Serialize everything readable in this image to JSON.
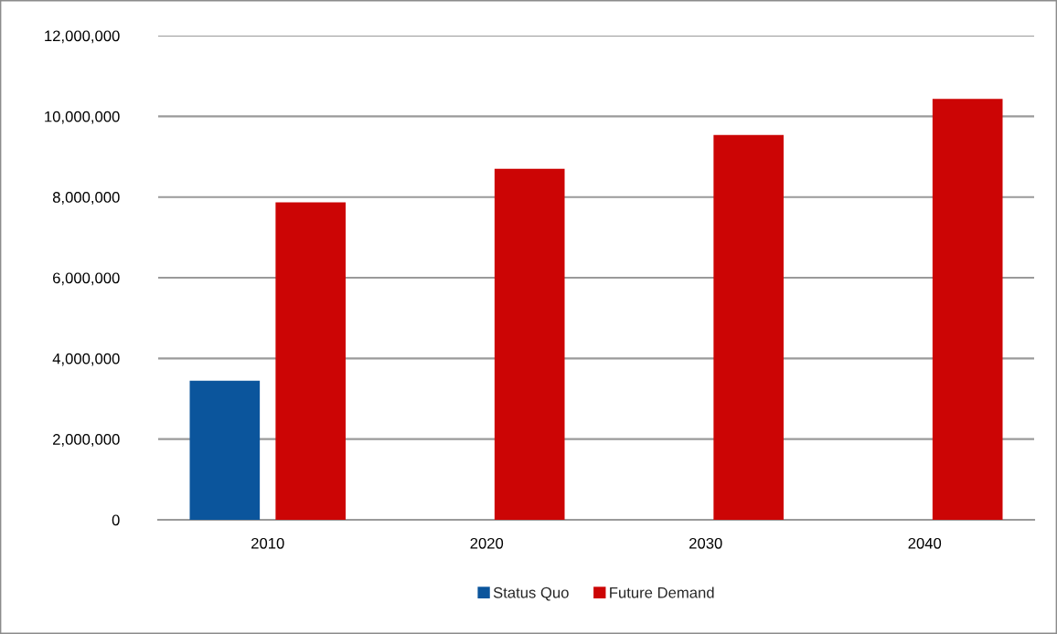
{
  "chart_data": {
    "type": "bar",
    "categories": [
      "2010",
      "2020",
      "2030",
      "2040"
    ],
    "series": [
      {
        "name": "Status Quo",
        "color": "#0b559c",
        "values": [
          3450000,
          null,
          null,
          null
        ]
      },
      {
        "name": "Future Demand",
        "color": "#cc0505",
        "values": [
          7870000,
          8700000,
          9540000,
          10430000
        ]
      }
    ],
    "ylim": [
      0,
      12000000
    ],
    "yticks": [
      0,
      {
        "value": 2000000,
        "label": "2,000,000"
      },
      {
        "value": 4000000,
        "label": "4,000,000"
      },
      {
        "value": 6000000,
        "label": "6,000,000"
      },
      {
        "value": 8000000,
        "label": "8,000,000"
      },
      {
        "value": 10000000,
        "label": "10,000,000"
      },
      {
        "value": 12000000,
        "label": "12,000,000"
      }
    ],
    "grid": "y",
    "legend": "bottom"
  }
}
